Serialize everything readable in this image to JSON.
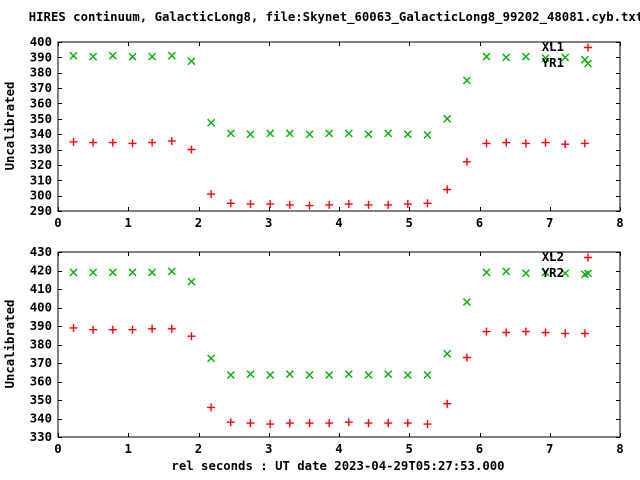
{
  "title": "HIRES continuum, GalacticLong8, file:Skynet_60063_GalacticLong8_99202_48081.cyb.txt",
  "xlabel": "rel seconds : UT date 2023-04-29T05:27:53.000",
  "colors": {
    "background": "#ffffff",
    "axis": "#000000",
    "text": "#000000",
    "series_red": "#ff0000",
    "series_green": "#00b000"
  },
  "chart_data": [
    {
      "type": "scatter",
      "panel": "top",
      "ylabel": "Uncalibrated",
      "xlim": [
        0,
        8
      ],
      "ylim": [
        290,
        400
      ],
      "xticks": [
        0,
        1,
        2,
        3,
        4,
        5,
        6,
        7,
        8
      ],
      "yticks": [
        290,
        300,
        310,
        320,
        330,
        340,
        350,
        360,
        370,
        380,
        390,
        400
      ],
      "grid": false,
      "legend_position": "top-right-inside",
      "x": [
        0.22,
        0.5,
        0.78,
        1.06,
        1.34,
        1.62,
        1.9,
        2.18,
        2.46,
        2.74,
        3.02,
        3.3,
        3.58,
        3.86,
        4.14,
        4.42,
        4.7,
        4.98,
        5.26,
        5.54,
        5.82,
        6.1,
        6.38,
        6.66,
        6.94,
        7.22,
        7.5
      ],
      "series": [
        {
          "name": "XL1",
          "marker": "plus",
          "color": "#ff0000",
          "values": [
            335,
            334.5,
            334.5,
            334,
            334.5,
            335.5,
            330,
            301,
            295,
            294.5,
            294.5,
            294,
            293.5,
            294,
            294.5,
            294,
            294,
            294.5,
            295,
            304,
            322,
            334,
            334.5,
            334,
            334.5,
            333.5,
            334
          ]
        },
        {
          "name": "YR1",
          "marker": "cross",
          "color": "#00b000",
          "values": [
            391,
            390.5,
            391,
            390.5,
            390.5,
            391,
            387.5,
            347.5,
            340.5,
            340,
            340.5,
            340.5,
            340,
            340.5,
            340.5,
            340,
            340.5,
            340,
            339.5,
            350,
            375,
            390.5,
            390,
            390.5,
            389.5,
            390,
            388.5
          ]
        }
      ]
    },
    {
      "type": "scatter",
      "panel": "bottom",
      "ylabel": "Uncalibrated",
      "xlim": [
        0,
        8
      ],
      "ylim": [
        330,
        430
      ],
      "xticks": [
        0,
        1,
        2,
        3,
        4,
        5,
        6,
        7,
        8
      ],
      "yticks": [
        330,
        340,
        350,
        360,
        370,
        380,
        390,
        400,
        410,
        420,
        430
      ],
      "grid": false,
      "legend_position": "top-right-inside",
      "x": [
        0.22,
        0.5,
        0.78,
        1.06,
        1.34,
        1.62,
        1.9,
        2.18,
        2.46,
        2.74,
        3.02,
        3.3,
        3.58,
        3.86,
        4.14,
        4.42,
        4.7,
        4.98,
        5.26,
        5.54,
        5.82,
        6.1,
        6.38,
        6.66,
        6.94,
        7.22,
        7.5
      ],
      "series": [
        {
          "name": "XL2",
          "marker": "plus",
          "color": "#ff0000",
          "values": [
            389,
            388,
            388,
            388,
            388.5,
            388.5,
            384.5,
            346,
            338,
            337.5,
            337,
            337.5,
            337.5,
            337.5,
            338,
            337.5,
            337.5,
            337.5,
            337,
            348,
            373,
            387,
            386.5,
            387,
            386.5,
            386,
            386
          ]
        },
        {
          "name": "YR2",
          "marker": "cross",
          "color": "#00b000",
          "values": [
            419,
            419,
            419,
            419,
            419,
            419.5,
            414,
            372.5,
            363.5,
            364,
            363.5,
            364,
            363.5,
            363.5,
            364,
            363.5,
            364,
            363.5,
            363.5,
            375,
            403,
            419,
            419.5,
            418.5,
            419,
            418.5,
            418
          ]
        }
      ]
    }
  ]
}
